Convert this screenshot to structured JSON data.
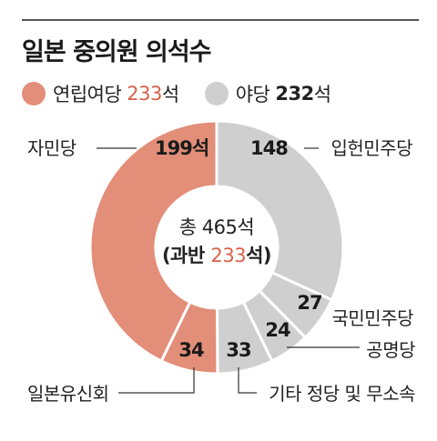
{
  "title": "일본 중의원 의석수",
  "legend": [
    {
      "name": "연립여당",
      "value": "233",
      "suffix": "석",
      "color": "#e28e78"
    },
    {
      "name": "야당",
      "value": "232",
      "suffix": "석",
      "color": "#cfcfcf"
    }
  ],
  "center": {
    "line1": "총 465석",
    "line2_prefix": "(과반 ",
    "line2_value": "233",
    "line2_suffix": "석)"
  },
  "chart_data": {
    "type": "pie",
    "total": 465,
    "slices": [
      {
        "label": "입헌민주당",
        "value": 148,
        "display": "148",
        "color": "#cfcfcf"
      },
      {
        "label": "국민민주당",
        "value": 27,
        "display": "27",
        "color": "#cfcfcf"
      },
      {
        "label": "공명당",
        "value": 24,
        "display": "24",
        "color": "#cfcfcf"
      },
      {
        "label": "기타 정당 및 무소속",
        "value": 33,
        "display": "33",
        "color": "#cfcfcf"
      },
      {
        "label": "일본유신회",
        "value": 34,
        "display": "34",
        "color": "#e28e78"
      },
      {
        "label": "자민당",
        "value": 199,
        "display": "199석",
        "color": "#e28e78"
      }
    ]
  }
}
